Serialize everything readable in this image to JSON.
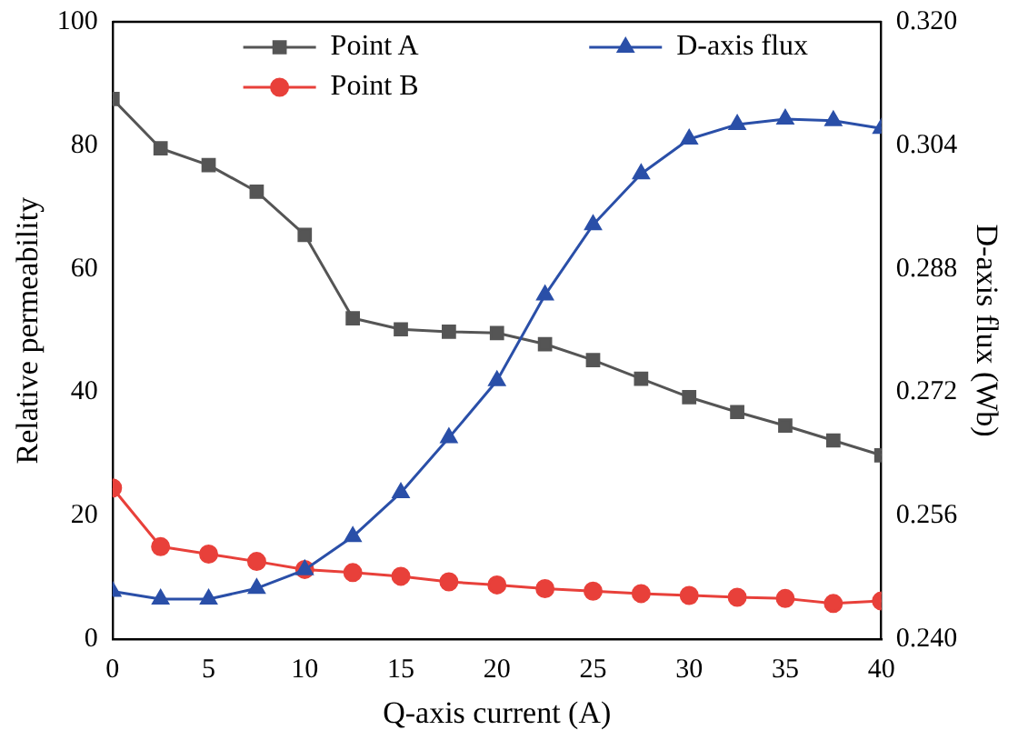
{
  "chart_data": {
    "type": "line",
    "xlabel": "Q-axis current (A)",
    "ylabel": "Relative permeability",
    "y2label": "D-axis flux (Wb)",
    "x": [
      0,
      2.5,
      5,
      7.5,
      10,
      12.5,
      15,
      17.5,
      20,
      22.5,
      25,
      27.5,
      30,
      32.5,
      35,
      37.5,
      40
    ],
    "xlim": [
      0,
      40
    ],
    "xticks": [
      0,
      5,
      10,
      15,
      20,
      25,
      30,
      35,
      40
    ],
    "ylim": [
      0,
      100
    ],
    "yticks": [
      0,
      20,
      40,
      60,
      80,
      100
    ],
    "y2lim": [
      0.24,
      0.32
    ],
    "y2ticks": [
      {
        "value": 0.24,
        "label": "0.240"
      },
      {
        "value": 0.256,
        "label": "0.256"
      },
      {
        "value": 0.272,
        "label": "0.272"
      },
      {
        "value": 0.288,
        "label": "0.288"
      },
      {
        "value": 0.304,
        "label": "0.304"
      },
      {
        "value": 0.32,
        "label": "0.320"
      }
    ],
    "series": [
      {
        "name": "Point A",
        "color": "#555555",
        "marker": "square",
        "values": [
          87.5,
          79.5,
          76.8,
          72.5,
          65.5,
          52,
          50.2,
          49.8,
          49.6,
          47.8,
          45.2,
          42.2,
          39.2,
          36.8,
          34.6,
          32.2,
          29.8
        ]
      },
      {
        "name": "Point B",
        "color": "#e8403a",
        "marker": "circle",
        "values": [
          24.5,
          15,
          13.8,
          12.6,
          11.3,
          10.8,
          10.2,
          9.3,
          8.8,
          8.2,
          7.8,
          7.4,
          7.1,
          6.8,
          6.6,
          5.8,
          6.2
        ]
      },
      {
        "name": "D-axis flux",
        "color": "#2a4fa8",
        "marker": "triangle",
        "axis": "y2",
        "values": [
          0.2462,
          0.2452,
          0.2452,
          0.2466,
          0.249,
          0.2533,
          0.259,
          0.2661,
          0.2735,
          0.2846,
          0.2937,
          0.3003,
          0.3048,
          0.3067,
          0.3074,
          0.3072,
          0.3062
        ]
      }
    ],
    "legend": "top",
    "grid": false,
    "line_style": "solid"
  }
}
